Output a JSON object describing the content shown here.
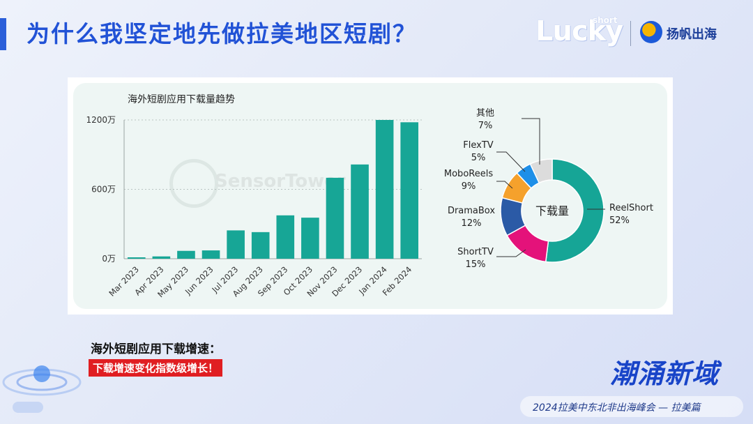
{
  "header": {
    "title": "为什么我坚定地先做拉美地区短剧？",
    "logo_lucky": "Lucky",
    "logo_short": "short",
    "logo_partner": "扬帆出海"
  },
  "chart_data": [
    {
      "type": "bar",
      "title": "海外短剧应用下载量趋势",
      "categories": [
        "Mar 2023",
        "Apr 2023",
        "May 2023",
        "Jun 2023",
        "Jul 2023",
        "Aug 2023",
        "Sep 2023",
        "Oct 2023",
        "Nov 2023",
        "Dec 2023",
        "Jan 2024",
        "Feb 2024"
      ],
      "values": [
        12,
        20,
        68,
        72,
        245,
        230,
        375,
        355,
        700,
        815,
        1200,
        1180
      ],
      "ylim": [
        0,
        1200
      ],
      "yticks": [
        "0万",
        "600万",
        "1200万"
      ],
      "ytick_values": [
        0,
        600,
        1200
      ],
      "grid": true,
      "color": "#17a696",
      "watermark": "SensorTower"
    },
    {
      "type": "pie",
      "center_label": "下载量",
      "slices": [
        {
          "name": "ReelShort",
          "percent": "52%",
          "value": 52,
          "color": "#16a596"
        },
        {
          "name": "ShortTV",
          "percent": "15%",
          "value": 15,
          "color": "#e4127a"
        },
        {
          "name": "DramaBox",
          "percent": "12%",
          "value": 12,
          "color": "#2b5aa6"
        },
        {
          "name": "MoboReels",
          "percent": "9%",
          "value": 9,
          "color": "#f5a12c"
        },
        {
          "name": "FlexTV",
          "percent": "5%",
          "value": 5,
          "color": "#1e8fe8"
        },
        {
          "name": "其他",
          "percent": "7%",
          "value": 7,
          "color": "#dcdcdc"
        }
      ]
    }
  ],
  "bottom": {
    "subtitle": "海外短剧应用下载增速：",
    "highlight": "下载增速变化指数级增长！",
    "event_title": "潮涌新域",
    "event_subtitle": "2024拉美中东北非出海峰会 — 拉美篇"
  }
}
